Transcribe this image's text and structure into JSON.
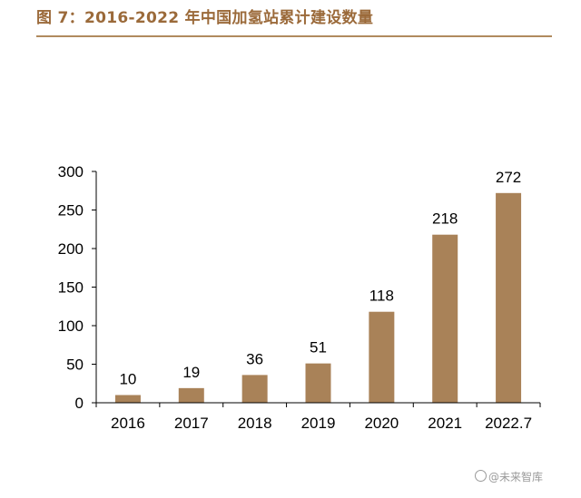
{
  "header": {
    "title": "图 7：2016-2022 年中国加氢站累计建设数量"
  },
  "watermark": {
    "text": "@未来智库"
  },
  "colors": {
    "bar": "#a98258",
    "title": "#9b6a3a",
    "rule": "#b08a5e",
    "axis": "#000000"
  },
  "chart_data": {
    "type": "bar",
    "title": "",
    "xlabel": "",
    "ylabel": "",
    "categories": [
      "2016",
      "2017",
      "2018",
      "2019",
      "2020",
      "2021",
      "2022.7"
    ],
    "values": [
      10,
      19,
      36,
      51,
      118,
      218,
      272
    ],
    "data_labels": [
      "10",
      "19",
      "36",
      "51",
      "118",
      "218",
      "272"
    ],
    "ylim": [
      0,
      300
    ],
    "yticks": [
      0,
      50,
      100,
      150,
      200,
      250,
      300
    ],
    "grid": false,
    "legend": "none"
  }
}
